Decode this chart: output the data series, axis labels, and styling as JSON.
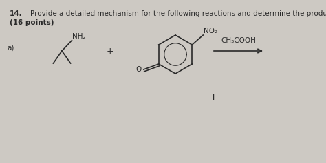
{
  "title_number": "14.",
  "title_text": "Provide a detailed mechanism for the following reactions and determine the product:",
  "subtitle": "(16 points)",
  "part_label": "a)",
  "catalyst": "CH₃COOH",
  "plus_sign": "+",
  "no2_label": "NO₂",
  "nh2_label": "NH₂",
  "o_label": "O",
  "background_color": "#cdc9c3",
  "text_color": "#2a2a2a",
  "title_fontsize": 7.5,
  "subtitle_fontsize": 7.5,
  "label_fontsize": 7.5,
  "chem_fontsize": 7.5,
  "figwidth": 4.74,
  "figheight": 2.37,
  "dpi": 100
}
